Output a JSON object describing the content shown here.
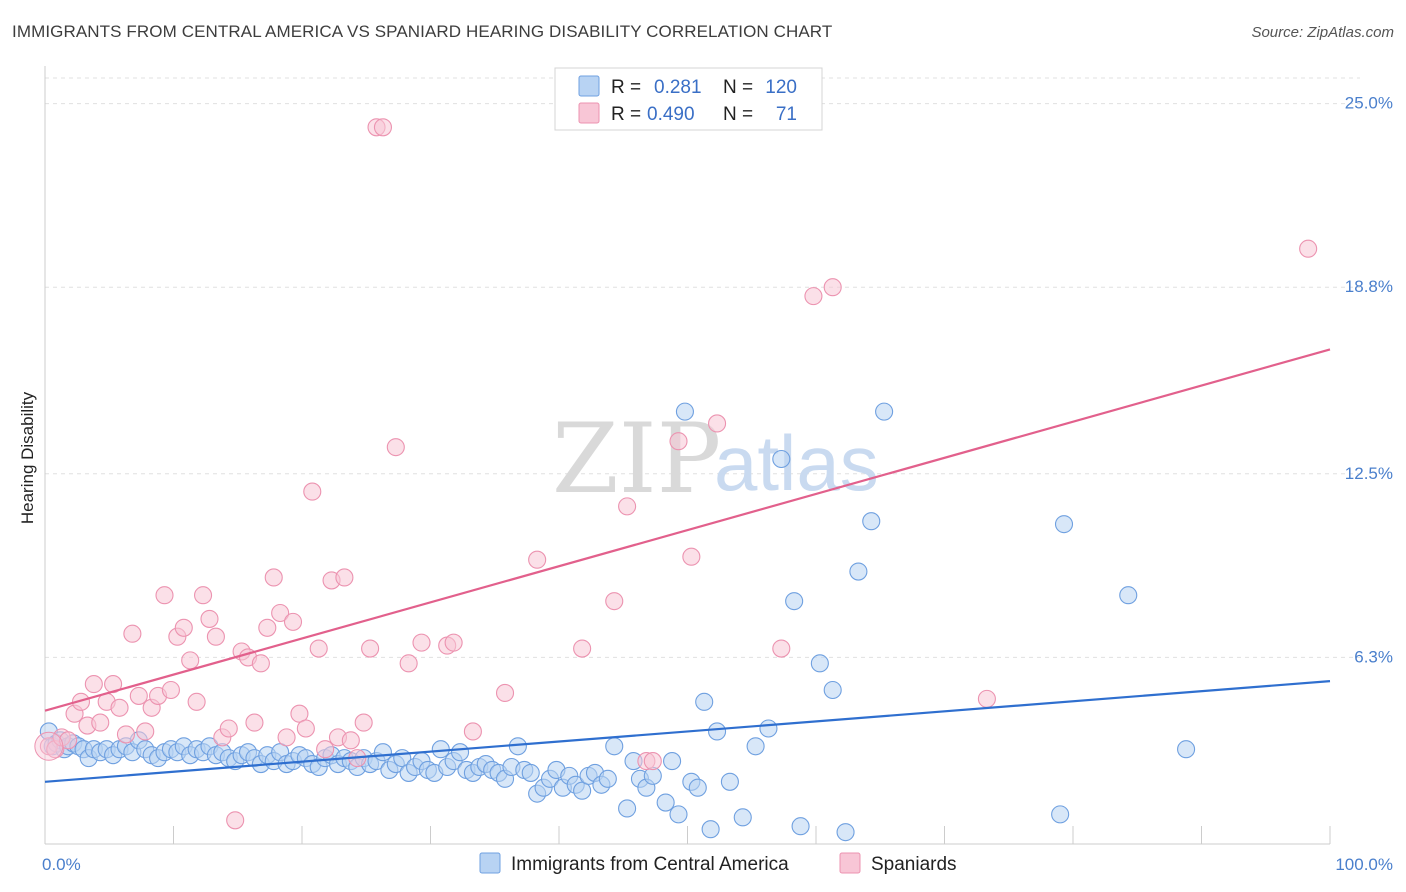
{
  "title": "IMMIGRANTS FROM CENTRAL AMERICA VS SPANIARD HEARING DISABILITY CORRELATION CHART",
  "source": "Source: ZipAtlas.com",
  "watermark": {
    "zip": "ZIP",
    "atlas": "atlas"
  },
  "legend": {
    "rows": [
      {
        "r_label": "R =",
        "r_value": "0.281",
        "n_label": "N =",
        "n_value": "120",
        "color": "#a8c8f0"
      },
      {
        "r_label": "R =",
        "r_value": "0.490",
        "n_label": "N =",
        "n_value": "71",
        "color": "#f5b8cc"
      }
    ]
  },
  "chart_data": {
    "type": "scatter",
    "ylabel": "Hearing Disability",
    "xlim": [
      0,
      100
    ],
    "ylim": [
      0,
      26
    ],
    "y_ticks": [
      {
        "value": 6.3,
        "label": "6.3%"
      },
      {
        "value": 12.5,
        "label": "12.5%"
      },
      {
        "value": 18.8,
        "label": "18.8%"
      },
      {
        "value": 25.0,
        "label": "25.0%"
      }
    ],
    "x_tick_labels": [
      {
        "value": 0,
        "label": "0.0%"
      },
      {
        "value": 100,
        "label": "100.0%"
      }
    ],
    "series": [
      {
        "name": "Immigrants from Central America",
        "color": "#6fa0e0",
        "fill": "#b8d3f3",
        "line_color": "#2f6fcf",
        "trend": {
          "x": [
            0,
            100
          ],
          "y": [
            2.1,
            5.5
          ]
        },
        "points": [
          [
            0.3,
            3.8
          ],
          [
            0.6,
            3.3
          ],
          [
            0.9,
            3.4
          ],
          [
            1.2,
            3.5
          ],
          [
            1.5,
            3.2
          ],
          [
            1.8,
            3.3
          ],
          [
            2.2,
            3.4
          ],
          [
            2.6,
            3.3
          ],
          [
            3.0,
            3.2
          ],
          [
            3.4,
            2.9
          ],
          [
            3.8,
            3.2
          ],
          [
            4.3,
            3.1
          ],
          [
            4.8,
            3.2
          ],
          [
            5.3,
            3.0
          ],
          [
            5.8,
            3.2
          ],
          [
            6.3,
            3.3
          ],
          [
            6.8,
            3.1
          ],
          [
            7.3,
            3.5
          ],
          [
            7.8,
            3.2
          ],
          [
            8.3,
            3.0
          ],
          [
            8.8,
            2.9
          ],
          [
            9.3,
            3.1
          ],
          [
            9.8,
            3.2
          ],
          [
            10.3,
            3.1
          ],
          [
            10.8,
            3.3
          ],
          [
            11.3,
            3.0
          ],
          [
            11.8,
            3.2
          ],
          [
            12.3,
            3.1
          ],
          [
            12.8,
            3.3
          ],
          [
            13.3,
            3.0
          ],
          [
            13.8,
            3.1
          ],
          [
            14.3,
            2.9
          ],
          [
            14.8,
            2.8
          ],
          [
            15.3,
            3.0
          ],
          [
            15.8,
            3.1
          ],
          [
            16.3,
            2.9
          ],
          [
            16.8,
            2.7
          ],
          [
            17.3,
            3.0
          ],
          [
            17.8,
            2.8
          ],
          [
            18.3,
            3.1
          ],
          [
            18.8,
            2.7
          ],
          [
            19.3,
            2.8
          ],
          [
            19.8,
            3.0
          ],
          [
            20.3,
            2.9
          ],
          [
            20.8,
            2.7
          ],
          [
            21.3,
            2.6
          ],
          [
            21.8,
            2.9
          ],
          [
            22.3,
            3.0
          ],
          [
            22.8,
            2.7
          ],
          [
            23.3,
            2.9
          ],
          [
            23.8,
            2.8
          ],
          [
            24.3,
            2.6
          ],
          [
            24.8,
            2.9
          ],
          [
            25.3,
            2.7
          ],
          [
            25.8,
            2.8
          ],
          [
            26.3,
            3.1
          ],
          [
            26.8,
            2.5
          ],
          [
            27.3,
            2.7
          ],
          [
            27.8,
            2.9
          ],
          [
            28.3,
            2.4
          ],
          [
            28.8,
            2.6
          ],
          [
            29.3,
            2.8
          ],
          [
            29.8,
            2.5
          ],
          [
            30.3,
            2.4
          ],
          [
            30.8,
            3.2
          ],
          [
            31.3,
            2.6
          ],
          [
            31.8,
            2.8
          ],
          [
            32.3,
            3.1
          ],
          [
            32.8,
            2.5
          ],
          [
            33.3,
            2.4
          ],
          [
            33.8,
            2.6
          ],
          [
            34.3,
            2.7
          ],
          [
            34.8,
            2.5
          ],
          [
            35.3,
            2.4
          ],
          [
            35.8,
            2.2
          ],
          [
            36.3,
            2.6
          ],
          [
            36.8,
            3.3
          ],
          [
            37.3,
            2.5
          ],
          [
            37.8,
            2.4
          ],
          [
            38.3,
            1.7
          ],
          [
            38.8,
            1.9
          ],
          [
            39.3,
            2.2
          ],
          [
            39.8,
            2.5
          ],
          [
            40.3,
            1.9
          ],
          [
            40.8,
            2.3
          ],
          [
            41.3,
            2.0
          ],
          [
            41.8,
            1.8
          ],
          [
            42.3,
            2.3
          ],
          [
            42.8,
            2.4
          ],
          [
            43.3,
            2.0
          ],
          [
            43.8,
            2.2
          ],
          [
            44.3,
            3.3
          ],
          [
            45.3,
            1.2
          ],
          [
            45.8,
            2.8
          ],
          [
            46.3,
            2.2
          ],
          [
            46.8,
            1.9
          ],
          [
            47.3,
            2.3
          ],
          [
            48.3,
            1.4
          ],
          [
            48.8,
            2.8
          ],
          [
            49.3,
            1.0
          ],
          [
            49.8,
            14.6
          ],
          [
            50.3,
            2.1
          ],
          [
            50.8,
            1.9
          ],
          [
            51.3,
            4.8
          ],
          [
            51.8,
            0.5
          ],
          [
            52.3,
            3.8
          ],
          [
            53.3,
            2.1
          ],
          [
            54.3,
            0.9
          ],
          [
            55.3,
            3.3
          ],
          [
            56.3,
            3.9
          ],
          [
            57.3,
            13.0
          ],
          [
            58.3,
            8.2
          ],
          [
            58.8,
            0.6
          ],
          [
            60.3,
            6.1
          ],
          [
            61.3,
            5.2
          ],
          [
            62.3,
            0.4
          ],
          [
            63.3,
            9.2
          ],
          [
            64.3,
            10.9
          ],
          [
            65.3,
            14.6
          ],
          [
            79.0,
            1.0
          ],
          [
            79.3,
            10.8
          ],
          [
            84.3,
            8.4
          ],
          [
            88.8,
            3.2
          ]
        ]
      },
      {
        "name": "Spaniards",
        "color": "#ec93b0",
        "fill": "#f8c6d6",
        "line_color": "#e2608c",
        "trend": {
          "x": [
            0,
            100
          ],
          "y": [
            4.5,
            16.7
          ]
        },
        "points": [
          [
            0.3,
            3.3
          ],
          [
            0.8,
            3.2
          ],
          [
            1.3,
            3.6
          ],
          [
            1.8,
            3.5
          ],
          [
            2.3,
            4.4
          ],
          [
            2.8,
            4.8
          ],
          [
            3.3,
            4.0
          ],
          [
            3.8,
            5.4
          ],
          [
            4.3,
            4.1
          ],
          [
            4.8,
            4.8
          ],
          [
            5.3,
            5.4
          ],
          [
            5.8,
            4.6
          ],
          [
            6.3,
            3.7
          ],
          [
            6.8,
            7.1
          ],
          [
            7.3,
            5.0
          ],
          [
            7.8,
            3.8
          ],
          [
            8.3,
            4.6
          ],
          [
            8.8,
            5.0
          ],
          [
            9.3,
            8.4
          ],
          [
            9.8,
            5.2
          ],
          [
            10.3,
            7.0
          ],
          [
            10.8,
            7.3
          ],
          [
            11.3,
            6.2
          ],
          [
            11.8,
            4.8
          ],
          [
            12.3,
            8.4
          ],
          [
            12.8,
            7.6
          ],
          [
            13.3,
            7.0
          ],
          [
            13.8,
            3.6
          ],
          [
            14.3,
            3.9
          ],
          [
            14.8,
            0.8
          ],
          [
            15.3,
            6.5
          ],
          [
            15.8,
            6.3
          ],
          [
            16.3,
            4.1
          ],
          [
            16.8,
            6.1
          ],
          [
            17.3,
            7.3
          ],
          [
            17.8,
            9.0
          ],
          [
            18.3,
            7.8
          ],
          [
            18.8,
            3.6
          ],
          [
            19.3,
            7.5
          ],
          [
            19.8,
            4.4
          ],
          [
            20.3,
            3.9
          ],
          [
            20.8,
            11.9
          ],
          [
            21.3,
            6.6
          ],
          [
            21.8,
            3.2
          ],
          [
            22.3,
            8.9
          ],
          [
            22.8,
            3.6
          ],
          [
            23.3,
            9.0
          ],
          [
            23.8,
            3.5
          ],
          [
            24.3,
            2.9
          ],
          [
            24.8,
            4.1
          ],
          [
            25.3,
            6.6
          ],
          [
            25.8,
            24.2
          ],
          [
            26.3,
            24.2
          ],
          [
            27.3,
            13.4
          ],
          [
            28.3,
            6.1
          ],
          [
            29.3,
            6.8
          ],
          [
            31.3,
            6.7
          ],
          [
            31.8,
            6.8
          ],
          [
            33.3,
            3.8
          ],
          [
            35.8,
            5.1
          ],
          [
            38.3,
            9.6
          ],
          [
            41.8,
            6.6
          ],
          [
            44.3,
            8.2
          ],
          [
            45.3,
            11.4
          ],
          [
            46.8,
            2.8
          ],
          [
            47.3,
            2.8
          ],
          [
            49.3,
            13.6
          ],
          [
            50.3,
            9.7
          ],
          [
            52.3,
            14.2
          ],
          [
            57.3,
            6.6
          ],
          [
            59.8,
            18.5
          ],
          [
            61.3,
            18.8
          ],
          [
            73.3,
            4.9
          ],
          [
            98.3,
            20.1
          ]
        ]
      }
    ],
    "legend_position": "top-center",
    "grid": true
  }
}
